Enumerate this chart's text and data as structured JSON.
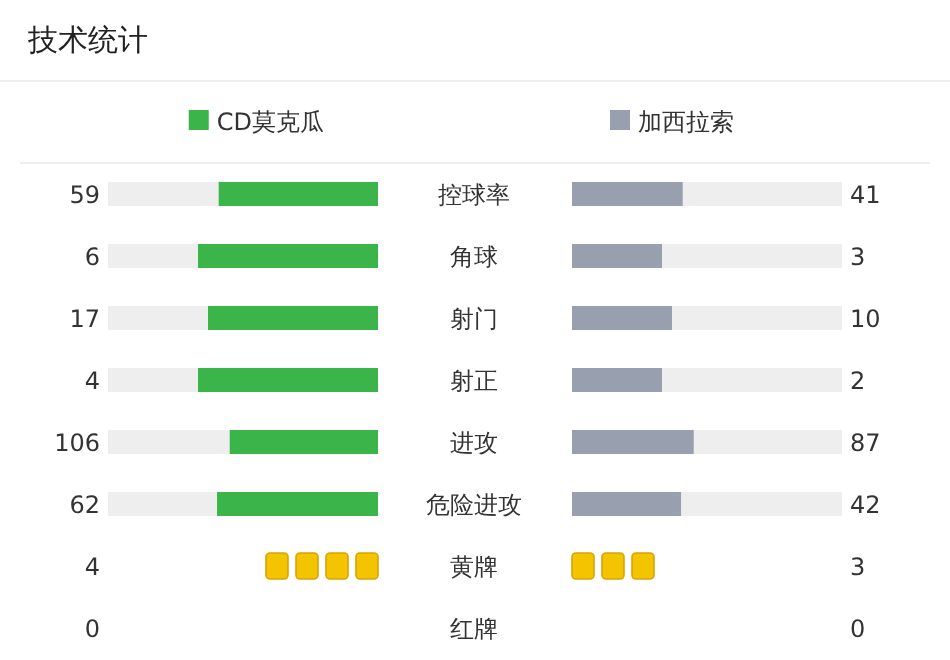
{
  "chart_data": [
    {
      "type": "other",
      "title": "技术统计",
      "categories": [
        "控球率",
        "角球",
        "射门",
        "射正",
        "进攻",
        "危险进攻"
      ],
      "series": [
        {
          "name": "CD莫克瓜",
          "color": "#3bb54a",
          "values": [
            59,
            6,
            17,
            4,
            106,
            62
          ]
        },
        {
          "name": "加西拉索",
          "color": "#98a0b0",
          "values": [
            41,
            3,
            10,
            2,
            87,
            42
          ]
        }
      ],
      "data_labels": true
    },
    {
      "type": "other",
      "categories": [
        "黄牌",
        "红牌"
      ],
      "series": [
        {
          "values": [
            4,
            0
          ],
          "color": "#f5c400"
        },
        {
          "values": [
            3,
            0
          ],
          "color": "#f5c400"
        }
      ],
      "data_labels": true
    }
  ]
}
